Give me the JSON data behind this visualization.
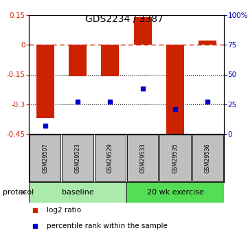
{
  "title": "GDS2234 / 3387",
  "samples": [
    "GSM29507",
    "GSM29523",
    "GSM29529",
    "GSM29533",
    "GSM29535",
    "GSM29536"
  ],
  "log2_ratio": [
    -0.37,
    -0.16,
    -0.16,
    0.14,
    -0.47,
    0.02
  ],
  "percentile_rank": [
    7,
    27,
    27,
    38,
    21,
    27
  ],
  "ylim_left": [
    -0.45,
    0.15
  ],
  "ylim_right": [
    0,
    100
  ],
  "yticks_left": [
    0.15,
    0,
    -0.15,
    -0.3,
    -0.45
  ],
  "yticks_right": [
    100,
    75,
    50,
    25,
    0
  ],
  "hlines_dotted": [
    -0.15,
    -0.3
  ],
  "dashed_hline": 0.0,
  "bar_color": "#CC2200",
  "square_color": "#0000CC",
  "bar_width": 0.55,
  "groups": [
    {
      "label": "baseline",
      "start": 0,
      "end": 3,
      "color": "#AAEAAA"
    },
    {
      "label": "20 wk exercise",
      "start": 3,
      "end": 6,
      "color": "#55DD55"
    }
  ],
  "protocol_label": "protocol",
  "legend_items": [
    {
      "label": "log2 ratio",
      "color": "#CC2200"
    },
    {
      "label": "percentile rank within the sample",
      "color": "#0000CC"
    }
  ],
  "background_color": "#ffffff",
  "sample_box_color": "#C0C0C0"
}
